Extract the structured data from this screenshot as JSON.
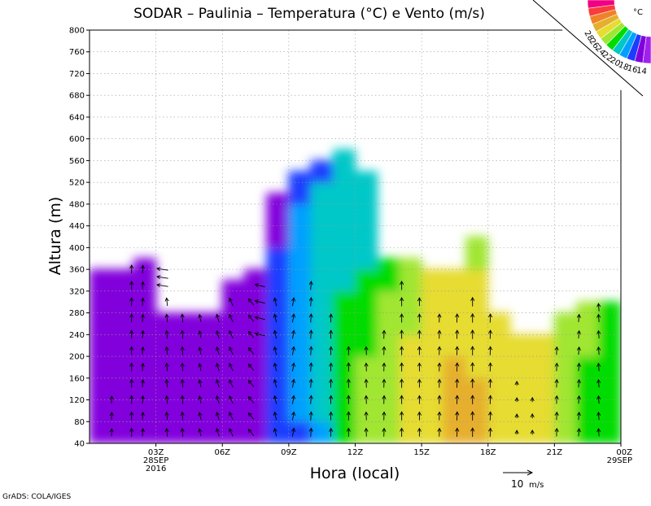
{
  "chart_data": {
    "type": "heatmap",
    "title": "SODAR – Paulinia – Temperatura (°C) e Vento (m/s)",
    "xlabel": "Hora (local)",
    "ylabel": "Altura (m)",
    "ylim": [
      40,
      800
    ],
    "y_ticks": [
      40,
      80,
      120,
      160,
      200,
      240,
      280,
      320,
      360,
      400,
      440,
      480,
      520,
      560,
      600,
      640,
      680,
      720,
      760,
      800
    ],
    "x_ticks": [
      {
        "hour": 3,
        "label": "03Z",
        "sub1": "28SEP",
        "sub2": "2016"
      },
      {
        "hour": 6,
        "label": "06Z",
        "sub1": "",
        "sub2": ""
      },
      {
        "hour": 9,
        "label": "09Z",
        "sub1": "",
        "sub2": ""
      },
      {
        "hour": 12,
        "label": "12Z",
        "sub1": "",
        "sub2": ""
      },
      {
        "hour": 15,
        "label": "15Z",
        "sub1": "",
        "sub2": ""
      },
      {
        "hour": 18,
        "label": "18Z",
        "sub1": "",
        "sub2": ""
      },
      {
        "hour": 21,
        "label": "21Z",
        "sub1": "",
        "sub2": ""
      },
      {
        "hour": 24,
        "label": "00Z",
        "sub1": "29SEP",
        "sub2": ""
      }
    ],
    "xlim_hours": [
      0,
      24
    ],
    "grid": true,
    "colorbar": {
      "unit": "°C",
      "levels": [
        14,
        16,
        18,
        20,
        22,
        24,
        26,
        28
      ],
      "colors": [
        "#a020f0",
        "#8200dc",
        "#1e3cff",
        "#00a0ff",
        "#00c8c8",
        "#00dc00",
        "#a0e632",
        "#e6dc32",
        "#e6af2d",
        "#f08228",
        "#fa3c3c",
        "#f00082"
      ]
    },
    "reference_vector": {
      "label": "10",
      "unit": "m/s"
    },
    "temperature_columns": [
      {
        "h0": 0.0,
        "h1": 2.0,
        "top": 360,
        "v": [
          14.6,
          14.7,
          14.9,
          15.0,
          14.9,
          14.7,
          14.4,
          14.2
        ]
      },
      {
        "h0": 2.0,
        "h1": 3.0,
        "top": 380,
        "v": [
          14.2,
          14.3,
          14.5,
          14.6,
          14.6,
          14.5,
          14.4,
          14.3
        ]
      },
      {
        "h0": 3.0,
        "h1": 6.0,
        "top": 280,
        "v": [
          14.3,
          14.4,
          14.5,
          14.6,
          14.6,
          14.5
        ]
      },
      {
        "h0": 6.0,
        "h1": 7.0,
        "top": 340,
        "v": [
          14.2,
          14.3,
          14.4,
          14.5,
          14.6,
          14.7,
          14.8
        ]
      },
      {
        "h0": 7.0,
        "h1": 8.0,
        "top": 360,
        "v": [
          14.5,
          14.6,
          14.8,
          14.9,
          15.0,
          15.1,
          15.2,
          15.3
        ]
      },
      {
        "h0": 8.0,
        "h1": 9.0,
        "top": 500,
        "v": [
          16.4,
          16.8,
          17.1,
          17.3,
          17.4,
          17.3,
          17.2,
          16.8,
          16.5,
          15.8,
          14.8
        ]
      },
      {
        "h0": 9.0,
        "h1": 10.0,
        "top": 540,
        "v": [
          17.8,
          18.0,
          18.3,
          18.5,
          18.8,
          19.0,
          19.2,
          19.3,
          19.2,
          19.0,
          18.8,
          16.5
        ]
      },
      {
        "h0": 10.0,
        "h1": 11.0,
        "top": 560,
        "v": [
          19.6,
          20.0,
          20.4,
          20.7,
          20.9,
          21.0,
          21.1,
          21.1,
          21.0,
          20.8,
          20.5,
          20.0,
          17.0
        ]
      },
      {
        "h0": 11.0,
        "h1": 12.0,
        "top": 580,
        "v": [
          22.2,
          22.4,
          22.6,
          22.5,
          22.4,
          22.2,
          22.1,
          21.9,
          21.7,
          21.5,
          21.3,
          21.0,
          20.5,
          20.0
        ]
      },
      {
        "h0": 12.0,
        "h1": 13.0,
        "top": 540,
        "v": [
          24.5,
          24.4,
          24.2,
          24.0,
          23.6,
          23.0,
          22.6,
          22.3,
          21.9,
          21.6,
          21.3,
          21.0,
          20.6
        ]
      },
      {
        "h0": 13.0,
        "h1": 14.0,
        "top": 380,
        "v": [
          25.2,
          25.0,
          24.8,
          24.6,
          24.5,
          24.3,
          24.0,
          23.6,
          22.5
        ]
      },
      {
        "h0": 14.0,
        "h1": 15.0,
        "top": 380,
        "v": [
          26.6,
          26.8,
          27.0,
          27.0,
          26.6,
          25.6,
          25.2,
          25.0,
          24.8
        ]
      },
      {
        "h0": 15.0,
        "h1": 16.0,
        "top": 360,
        "v": [
          26.6,
          27.2,
          27.5,
          27.6,
          27.4,
          27.0,
          26.6,
          26.3
        ]
      },
      {
        "h0": 16.0,
        "h1": 17.0,
        "top": 360,
        "v": [
          28.4,
          28.6,
          28.6,
          28.3,
          27.6,
          26.8,
          26.3,
          26.1
        ]
      },
      {
        "h0": 17.0,
        "h1": 18.0,
        "top": 420,
        "v": [
          28.1,
          28.4,
          28.2,
          27.9,
          27.4,
          26.7,
          26.2,
          26.0,
          25.9,
          25.8
        ]
      },
      {
        "h0": 18.0,
        "h1": 19.0,
        "top": 280,
        "v": [
          27.0,
          27.2,
          27.3,
          27.2,
          26.6,
          26.2
        ]
      },
      {
        "h0": 19.0,
        "h1": 21.0,
        "top": 240,
        "v": [
          26.4,
          26.3,
          26.2,
          26.1,
          26.0
        ]
      },
      {
        "h0": 21.0,
        "h1": 22.0,
        "top": 280,
        "v": [
          25.5,
          25.6,
          25.7,
          25.8,
          25.9,
          25.9
        ]
      },
      {
        "h0": 22.0,
        "h1": 23.0,
        "top": 300,
        "v": [
          23.2,
          23.3,
          23.5,
          23.6,
          24.0,
          24.5,
          24.9
        ]
      },
      {
        "h0": 23.0,
        "h1": 24.0,
        "top": 300,
        "v": [
          22.2,
          22.4,
          22.6,
          22.8,
          23.0,
          23.3,
          23.6
        ]
      }
    ],
    "wind_columns": [
      {
        "hour": 1.0,
        "alts": [
          60,
          90,
          120
        ],
        "u": 0.1,
        "v": 2.5
      },
      {
        "hour": 1.9,
        "alts": [
          60,
          90,
          120,
          150,
          180,
          210,
          240,
          270,
          300,
          330,
          360
        ],
        "u": 0.0,
        "v": 2.8
      },
      {
        "hour": 2.4,
        "alts": [
          60,
          90,
          120,
          150,
          180,
          210,
          240,
          270,
          300,
          330,
          360
        ],
        "u": 0.2,
        "v": 2.6
      },
      {
        "hour": 3.3,
        "alts": [
          330,
          345,
          360
        ],
        "u": -3.8,
        "v": 0.6
      },
      {
        "hour": 3.5,
        "alts": [
          60,
          90,
          120,
          150,
          180,
          210,
          240,
          270,
          300
        ],
        "u": -0.3,
        "v": 2.7
      },
      {
        "hour": 4.2,
        "alts": [
          60,
          90,
          120,
          150,
          180,
          210,
          240,
          270
        ],
        "u": -0.2,
        "v": 2.8
      },
      {
        "hour": 5.0,
        "alts": [
          60,
          90,
          120,
          150,
          180,
          210,
          240,
          270
        ],
        "u": -0.5,
        "v": 2.5
      },
      {
        "hour": 5.8,
        "alts": [
          60,
          90,
          120,
          150,
          180,
          210,
          240,
          270
        ],
        "u": -0.8,
        "v": 2.6
      },
      {
        "hour": 6.4,
        "alts": [
          60,
          90,
          120,
          150,
          180,
          210,
          240,
          270,
          300
        ],
        "u": -1.2,
        "v": 2.6
      },
      {
        "hour": 7.3,
        "alts": [
          60,
          90,
          120,
          150,
          180,
          210,
          240,
          270,
          300
        ],
        "u": -1.8,
        "v": 2.2
      },
      {
        "hour": 7.7,
        "alts": [
          240,
          270,
          300,
          330
        ],
        "u": -3.4,
        "v": 0.8
      },
      {
        "hour": 8.4,
        "alts": [
          60,
          90,
          120,
          150,
          180,
          210,
          240,
          270,
          300
        ],
        "u": -0.6,
        "v": 2.7
      },
      {
        "hour": 9.2,
        "alts": [
          60,
          90,
          120,
          150,
          180,
          210,
          240,
          270,
          300
        ],
        "u": 0.5,
        "v": 2.8
      },
      {
        "hour": 10.0,
        "alts": [
          60,
          90,
          120,
          150,
          180,
          210,
          240,
          270,
          300,
          330
        ],
        "u": 0.2,
        "v": 2.9
      },
      {
        "hour": 10.9,
        "alts": [
          60,
          90,
          120,
          150,
          180,
          210,
          240,
          270
        ],
        "u": 0.1,
        "v": 2.8
      },
      {
        "hour": 11.7,
        "alts": [
          60,
          90,
          120,
          150,
          180,
          210
        ],
        "u": 0.0,
        "v": 2.9
      },
      {
        "hour": 12.5,
        "alts": [
          60,
          90,
          120,
          150,
          180,
          210
        ],
        "u": -0.1,
        "v": 2.8
      },
      {
        "hour": 13.3,
        "alts": [
          60,
          90,
          120,
          150,
          180,
          210,
          240
        ],
        "u": 0.1,
        "v": 2.8
      },
      {
        "hour": 14.1,
        "alts": [
          60,
          90,
          120,
          150,
          180,
          210,
          240,
          270,
          300,
          330
        ],
        "u": 0.0,
        "v": 2.9
      },
      {
        "hour": 14.9,
        "alts": [
          60,
          90,
          120,
          150,
          180,
          210,
          240,
          270,
          300
        ],
        "u": 0.0,
        "v": 2.8
      },
      {
        "hour": 15.8,
        "alts": [
          60,
          90,
          120,
          150,
          180,
          210,
          240,
          270
        ],
        "u": 0.1,
        "v": 2.8
      },
      {
        "hour": 16.6,
        "alts": [
          60,
          90,
          120,
          150,
          180,
          210,
          240,
          270
        ],
        "u": 0.1,
        "v": 2.9
      },
      {
        "hour": 17.3,
        "alts": [
          60,
          90,
          120,
          150,
          180,
          210,
          240,
          270,
          300
        ],
        "u": 0.0,
        "v": 3.0
      },
      {
        "hour": 18.1,
        "alts": [
          60,
          90,
          120,
          150,
          180,
          210,
          240,
          270
        ],
        "u": 0.1,
        "v": 2.9
      },
      {
        "hour": 19.3,
        "alts": [
          60,
          90,
          120,
          150
        ],
        "u": 0.0,
        "v": 1.4
      },
      {
        "hour": 20.0,
        "alts": [
          60,
          90,
          120
        ],
        "u": 0.0,
        "v": 1.5
      },
      {
        "hour": 21.1,
        "alts": [
          60,
          90,
          120,
          150,
          180,
          210
        ],
        "u": 0.1,
        "v": 2.7
      },
      {
        "hour": 22.1,
        "alts": [
          60,
          90,
          120,
          150,
          180,
          210,
          240,
          270
        ],
        "u": 0.2,
        "v": 2.6
      },
      {
        "hour": 23.0,
        "alts": [
          60,
          90,
          120,
          150,
          180,
          210,
          240,
          270,
          290
        ],
        "u": -0.2,
        "v": 2.6
      }
    ]
  },
  "labels": {
    "y_axis_title": "Altura (m)",
    "x_axis_title": "Hora (local)",
    "ref_value": "10",
    "ref_unit": "m/s",
    "credit": "GrADS: COLA/IGES",
    "cb_unit": "°C"
  }
}
